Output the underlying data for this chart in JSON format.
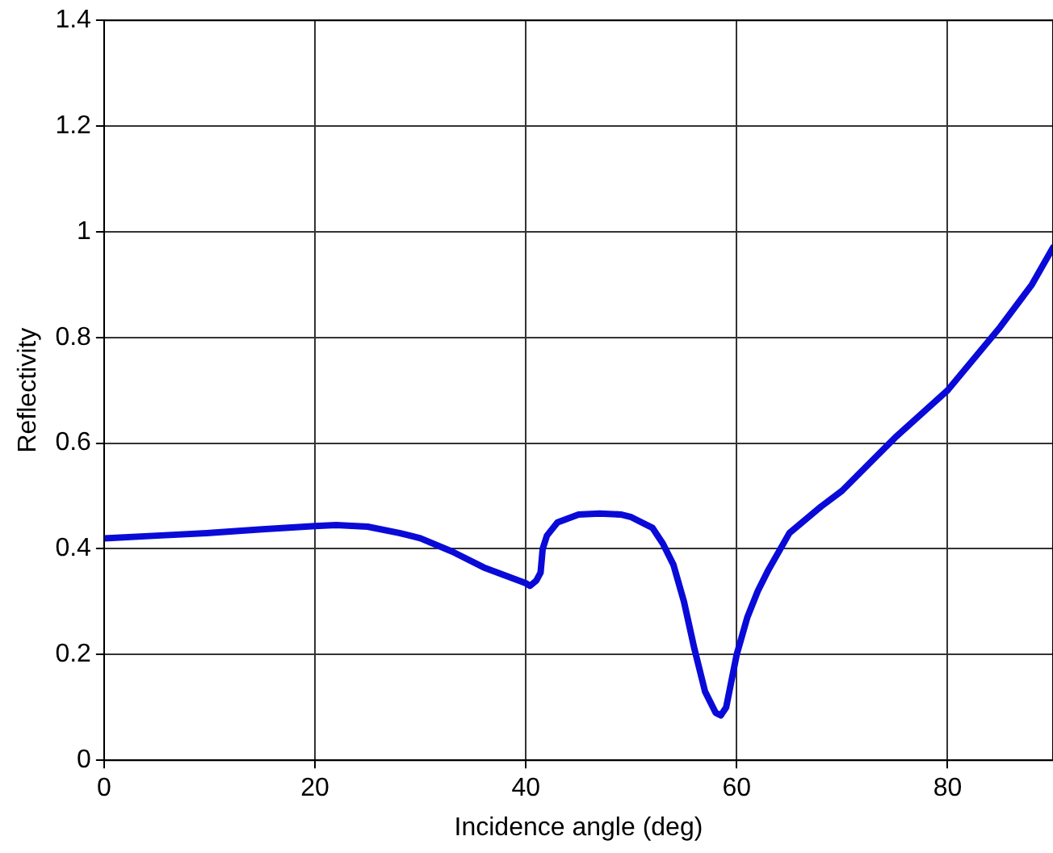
{
  "chart_data": {
    "type": "line",
    "xlabel": "Incidence angle (deg)",
    "ylabel": "Reflectivity",
    "xlim": [
      0,
      90
    ],
    "xticks": [
      0,
      20,
      40,
      60,
      80
    ],
    "ylim": [
      0,
      1.4
    ],
    "yticks": [
      0,
      0.2,
      0.4,
      0.6,
      0.8,
      1,
      1.2,
      1.4
    ],
    "grid": true,
    "legend": false,
    "marker": "none",
    "line_style": "solid",
    "series": [
      {
        "color": "#0a0ad8",
        "x": [
          0,
          5,
          10,
          15,
          20,
          22,
          25,
          28,
          30,
          33,
          36,
          38,
          40,
          40.4,
          41,
          41.4,
          41.6,
          42,
          43,
          45,
          47,
          49,
          50,
          52,
          53,
          54,
          55,
          56,
          57,
          58,
          58.5,
          59,
          60,
          61,
          62,
          63,
          65,
          68,
          70,
          75,
          80,
          85,
          88,
          90
        ],
        "values": [
          0.42,
          0.425,
          0.43,
          0.437,
          0.443,
          0.445,
          0.442,
          0.43,
          0.42,
          0.395,
          0.365,
          0.35,
          0.335,
          0.33,
          0.34,
          0.355,
          0.4,
          0.425,
          0.45,
          0.465,
          0.467,
          0.465,
          0.46,
          0.44,
          0.41,
          0.37,
          0.3,
          0.21,
          0.13,
          0.09,
          0.085,
          0.1,
          0.2,
          0.27,
          0.32,
          0.36,
          0.43,
          0.48,
          0.51,
          0.61,
          0.7,
          0.82,
          0.9,
          0.97
        ]
      }
    ]
  }
}
